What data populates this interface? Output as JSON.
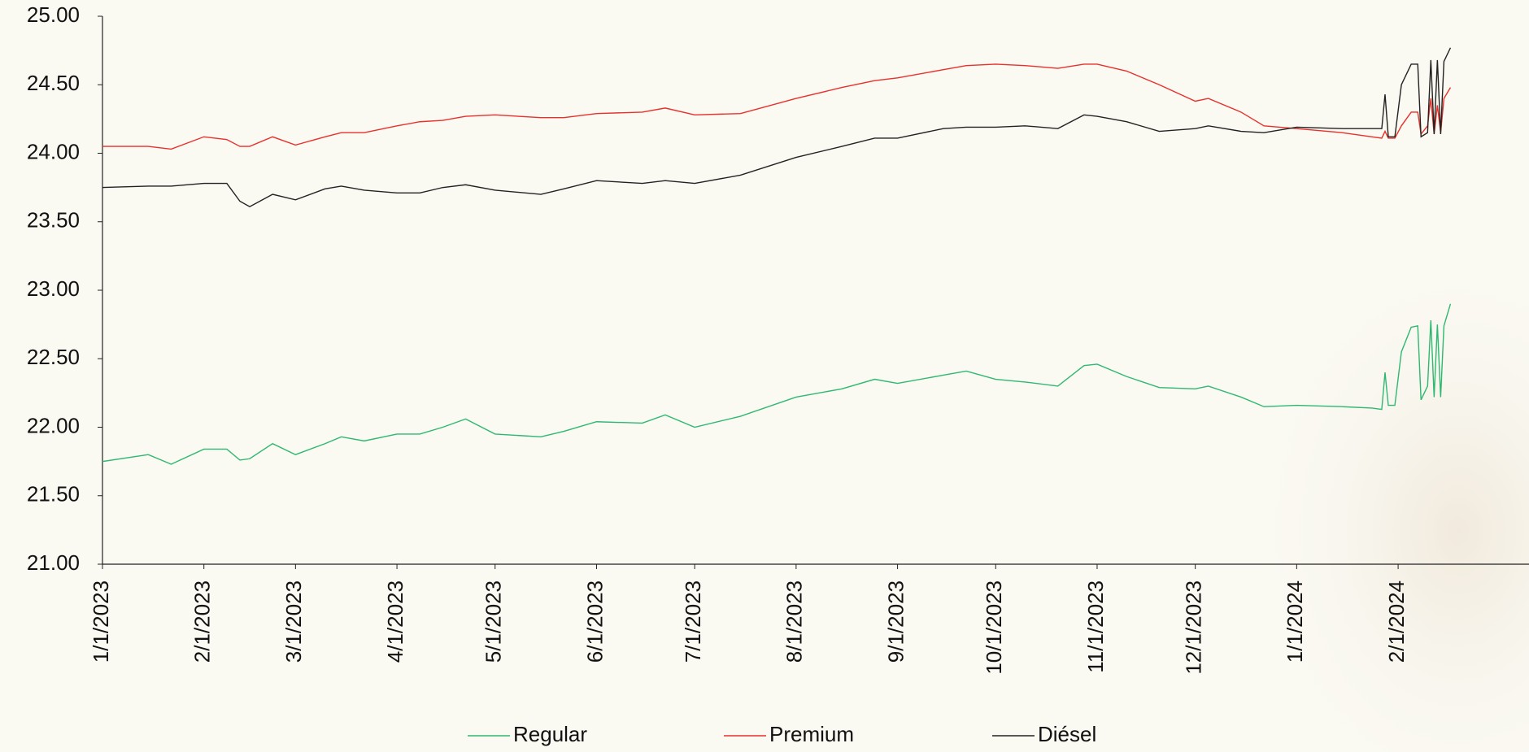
{
  "chart_data": {
    "type": "line",
    "x": [
      "2023-01-01",
      "2023-01-15",
      "2023-01-22",
      "2023-02-01",
      "2023-02-08",
      "2023-02-12",
      "2023-02-15",
      "2023-02-22",
      "2023-03-01",
      "2023-03-10",
      "2023-03-15",
      "2023-03-22",
      "2023-04-01",
      "2023-04-08",
      "2023-04-15",
      "2023-04-22",
      "2023-05-01",
      "2023-05-15",
      "2023-05-22",
      "2023-06-01",
      "2023-06-15",
      "2023-06-22",
      "2023-07-01",
      "2023-07-15",
      "2023-08-01",
      "2023-08-15",
      "2023-08-25",
      "2023-09-01",
      "2023-09-15",
      "2023-09-22",
      "2023-10-01",
      "2023-10-10",
      "2023-10-20",
      "2023-10-28",
      "2023-11-01",
      "2023-11-10",
      "2023-11-20",
      "2023-12-01",
      "2023-12-05",
      "2023-12-15",
      "2023-12-22",
      "2024-01-01",
      "2024-01-15",
      "2024-01-24",
      "2024-01-27",
      "2024-01-28",
      "2024-01-29",
      "2024-01-31",
      "2024-02-02",
      "2024-02-05",
      "2024-02-07",
      "2024-02-08",
      "2024-02-10",
      "2024-02-11",
      "2024-02-12",
      "2024-02-13",
      "2024-02-14",
      "2024-02-15",
      "2024-02-17"
    ],
    "series": [
      {
        "name": "Regular",
        "color": "#2eb872",
        "values": [
          21.75,
          21.8,
          21.73,
          21.84,
          21.84,
          21.76,
          21.77,
          21.88,
          21.8,
          21.88,
          21.93,
          21.9,
          21.95,
          21.95,
          22.0,
          22.06,
          21.95,
          21.93,
          21.97,
          22.04,
          22.03,
          22.09,
          22.0,
          22.08,
          22.22,
          22.28,
          22.35,
          22.32,
          22.38,
          22.41,
          22.35,
          22.33,
          22.3,
          22.45,
          22.46,
          22.37,
          22.29,
          22.28,
          22.3,
          22.22,
          22.15,
          22.16,
          22.15,
          22.14,
          22.13,
          22.4,
          22.16,
          22.16,
          22.55,
          22.73,
          22.74,
          22.2,
          22.3,
          22.78,
          22.22,
          22.75,
          22.22,
          22.74,
          22.9
        ]
      },
      {
        "name": "Premium",
        "color": "#e8302c",
        "values": [
          24.05,
          24.05,
          24.03,
          24.12,
          24.1,
          24.05,
          24.05,
          24.12,
          24.06,
          24.12,
          24.15,
          24.15,
          24.2,
          24.23,
          24.24,
          24.27,
          24.28,
          24.26,
          24.26,
          24.29,
          24.3,
          24.33,
          24.28,
          24.29,
          24.4,
          24.48,
          24.53,
          24.55,
          24.61,
          24.64,
          24.65,
          24.64,
          24.62,
          24.65,
          24.65,
          24.6,
          24.5,
          24.38,
          24.4,
          24.3,
          24.2,
          24.18,
          24.15,
          24.12,
          24.11,
          24.16,
          24.11,
          24.11,
          24.2,
          24.3,
          24.3,
          24.14,
          24.2,
          24.4,
          24.14,
          24.35,
          24.15,
          24.4,
          24.48
        ]
      },
      {
        "name": "Diésel",
        "color": "#222222",
        "values": [
          23.75,
          23.76,
          23.76,
          23.78,
          23.78,
          23.65,
          23.61,
          23.7,
          23.66,
          23.74,
          23.76,
          23.73,
          23.71,
          23.71,
          23.75,
          23.77,
          23.73,
          23.7,
          23.74,
          23.8,
          23.78,
          23.8,
          23.78,
          23.84,
          23.97,
          24.05,
          24.11,
          24.11,
          24.18,
          24.19,
          24.19,
          24.2,
          24.18,
          24.28,
          24.27,
          24.23,
          24.16,
          24.18,
          24.2,
          24.16,
          24.15,
          24.19,
          24.18,
          24.18,
          24.18,
          24.43,
          24.12,
          24.12,
          24.5,
          24.65,
          24.65,
          24.12,
          24.15,
          24.68,
          24.14,
          24.68,
          24.14,
          24.67,
          24.77
        ]
      }
    ],
    "xlim": [
      "2023-01-01",
      "2024-03-12"
    ],
    "xticks": [
      {
        "value": "2023-01-01",
        "label": "1/1/2023"
      },
      {
        "value": "2023-02-01",
        "label": "2/1/2023"
      },
      {
        "value": "2023-03-01",
        "label": "3/1/2023"
      },
      {
        "value": "2023-04-01",
        "label": "4/1/2023"
      },
      {
        "value": "2023-05-01",
        "label": "5/1/2023"
      },
      {
        "value": "2023-06-01",
        "label": "6/1/2023"
      },
      {
        "value": "2023-07-01",
        "label": "7/1/2023"
      },
      {
        "value": "2023-08-01",
        "label": "8/1/2023"
      },
      {
        "value": "2023-09-01",
        "label": "9/1/2023"
      },
      {
        "value": "2023-10-01",
        "label": "10/1/2023"
      },
      {
        "value": "2023-11-01",
        "label": "11/1/2023"
      },
      {
        "value": "2023-12-01",
        "label": "12/1/2023"
      },
      {
        "value": "2024-01-01",
        "label": "1/1/2024"
      },
      {
        "value": "2024-02-01",
        "label": "2/1/2024"
      }
    ],
    "ylim": [
      21,
      25
    ],
    "yticks": [
      {
        "value": 21,
        "label": "21.00"
      },
      {
        "value": 21.5,
        "label": "21.50"
      },
      {
        "value": 22,
        "label": "22.00"
      },
      {
        "value": 22.5,
        "label": "22.50"
      },
      {
        "value": 23,
        "label": "23.00"
      },
      {
        "value": 23.5,
        "label": "23.50"
      },
      {
        "value": 24,
        "label": "24.00"
      },
      {
        "value": 24.5,
        "label": "24.50"
      },
      {
        "value": 25,
        "label": "25.00"
      }
    ],
    "legend": "bottom"
  }
}
